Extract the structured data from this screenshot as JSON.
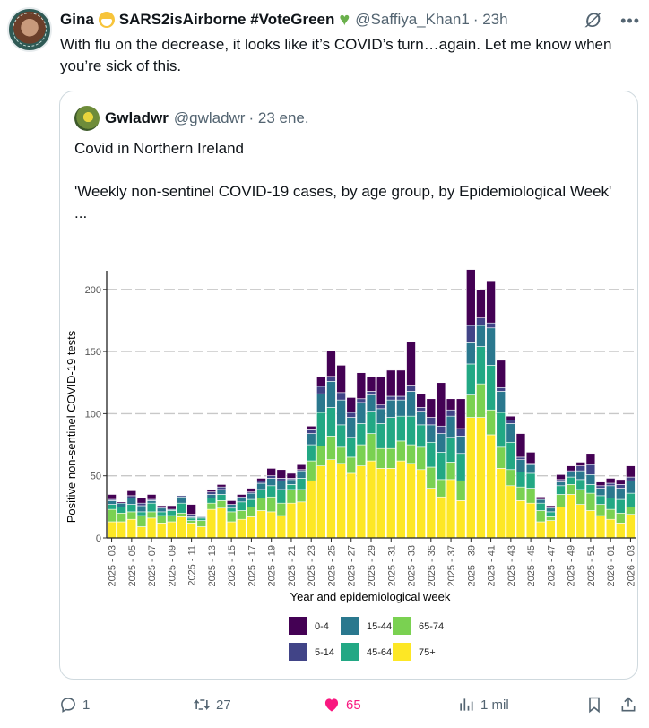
{
  "tweet": {
    "author_name": "Gina",
    "author_display_suffix": "SARS2isAirborne #VoteGreen",
    "author_handle": "@Saffiya_Khan1",
    "time": "· 23h",
    "text": "With flu on the decrease, it looks like it’s COVID’s turn…again. Let me know when you’re sick of this.",
    "icons": [
      "face-mask-emoji",
      "green-heart-emoji",
      "grok-icon",
      "more-icon"
    ]
  },
  "quote": {
    "author_name": "Gwladwr",
    "author_handle": "@gwladwr",
    "date": "· 23 ene.",
    "text": "Covid in Northern Ireland\n\n'Weekly non-sentinel COVID-19 cases, by age group, by Epidemiological Week'\n..."
  },
  "actions": {
    "replies": "1",
    "reposts": "27",
    "likes": "65",
    "views": "1 mil",
    "like_color": "#f91880"
  },
  "chart_data": {
    "type": "bar",
    "stacked": true,
    "title": "",
    "xlabel": "Year and epidemiological week",
    "ylabel": "Positive non-sentinel COVID-19 tests",
    "ylim": [
      0,
      215
    ],
    "yticks": [
      0,
      50,
      100,
      150,
      200
    ],
    "grid": "horizontal-dashed",
    "legend_position": "bottom",
    "categories": [
      "2025 - 03",
      "2025 - 04",
      "2025 - 05",
      "2025 - 06",
      "2025 - 07",
      "2025 - 08",
      "2025 - 09",
      "2025 - 10",
      "2025 - 11",
      "2025 - 12",
      "2025 - 13",
      "2025 - 14",
      "2025 - 15",
      "2025 - 16",
      "2025 - 17",
      "2025 - 18",
      "2025 - 19",
      "2025 - 20",
      "2025 - 21",
      "2025 - 22",
      "2025 - 23",
      "2025 - 24",
      "2025 - 25",
      "2025 - 26",
      "2025 - 27",
      "2025 - 28",
      "2025 - 29",
      "2025 - 30",
      "2025 - 31",
      "2025 - 32",
      "2025 - 33",
      "2025 - 34",
      "2025 - 35",
      "2025 - 36",
      "2025 - 37",
      "2025 - 38",
      "2025 - 39",
      "2025 - 40",
      "2025 - 41",
      "2025 - 42",
      "2025 - 43",
      "2025 - 44",
      "2025 - 45",
      "2025 - 46",
      "2025 - 47",
      "2025 - 48",
      "2025 - 49",
      "2025 - 50",
      "2025 - 51",
      "2025 - 52",
      "2026 - 01",
      "2026 - 02",
      "2026 - 03"
    ],
    "tick_labels_shown_every": 2,
    "series": [
      {
        "name": "75+",
        "color": "#fde725",
        "values": [
          13,
          13,
          15,
          9,
          16,
          12,
          13,
          17,
          12,
          9,
          23,
          24,
          13,
          15,
          17,
          22,
          21,
          18,
          28,
          29,
          46,
          58,
          63,
          60,
          52,
          58,
          62,
          56,
          56,
          62,
          60,
          55,
          40,
          33,
          47,
          30,
          97,
          97,
          83,
          56,
          42,
          30,
          28,
          13,
          14,
          25,
          35,
          27,
          22,
          18,
          15,
          12,
          19
        ]
      },
      {
        "name": "65-74",
        "color": "#7ad151",
        "values": [
          10,
          7,
          6,
          9,
          5,
          6,
          5,
          3,
          2,
          5,
          5,
          6,
          8,
          7,
          8,
          10,
          12,
          10,
          11,
          10,
          16,
          16,
          19,
          13,
          13,
          17,
          22,
          16,
          16,
          16,
          15,
          18,
          17,
          14,
          14,
          16,
          18,
          27,
          20,
          17,
          13,
          11,
          12,
          9,
          3,
          10,
          8,
          12,
          14,
          9,
          8,
          8,
          6
        ]
      },
      {
        "name": "45-64",
        "color": "#22a884",
        "values": [
          4,
          5,
          6,
          3,
          7,
          3,
          4,
          8,
          2,
          2,
          4,
          5,
          3,
          7,
          6,
          7,
          9,
          11,
          4,
          9,
          13,
          27,
          23,
          18,
          16,
          17,
          18,
          20,
          25,
          20,
          23,
          18,
          20,
          22,
          20,
          22,
          25,
          30,
          36,
          28,
          22,
          12,
          12,
          6,
          4,
          7,
          6,
          8,
          7,
          7,
          9,
          11,
          11
        ]
      },
      {
        "name": "15-44",
        "color": "#2a788e",
        "values": [
          3,
          3,
          5,
          5,
          2,
          3,
          1,
          5,
          1,
          1,
          3,
          4,
          3,
          3,
          5,
          5,
          6,
          7,
          4,
          6,
          9,
          15,
          21,
          20,
          16,
          17,
          13,
          12,
          14,
          13,
          20,
          11,
          14,
          15,
          17,
          14,
          17,
          17,
          30,
          17,
          15,
          10,
          7,
          3,
          3,
          3,
          4,
          7,
          8,
          6,
          10,
          9,
          10
        ]
      },
      {
        "name": "5-14",
        "color": "#414487",
        "values": [
          1,
          0,
          2,
          2,
          1,
          1,
          0,
          1,
          2,
          1,
          2,
          2,
          0,
          1,
          1,
          2,
          2,
          2,
          1,
          1,
          3,
          6,
          4,
          6,
          4,
          3,
          3,
          3,
          3,
          3,
          5,
          3,
          6,
          6,
          5,
          6,
          14,
          6,
          4,
          3,
          3,
          2,
          1,
          0,
          1,
          2,
          1,
          4,
          8,
          2,
          2,
          3,
          3
        ]
      },
      {
        "name": "0-4",
        "color": "#440154",
        "values": [
          4,
          1,
          4,
          4,
          4,
          1,
          3,
          0,
          8,
          0,
          2,
          2,
          3,
          2,
          3,
          2,
          6,
          7,
          4,
          4,
          3,
          8,
          21,
          22,
          12,
          21,
          12,
          23,
          21,
          21,
          35,
          11,
          15,
          35,
          9,
          24,
          45,
          23,
          34,
          22,
          3,
          19,
          9,
          2,
          1,
          4,
          4,
          3,
          9,
          3,
          4,
          4,
          9
        ]
      }
    ]
  }
}
